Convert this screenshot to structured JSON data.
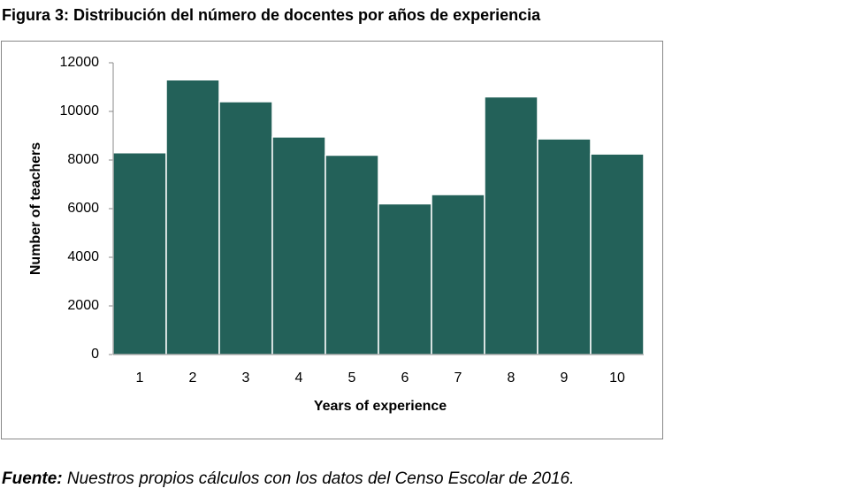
{
  "chart_data": {
    "type": "bar",
    "title": "Figura 3: Distribución del número de docentes por años de experiencia",
    "x_label": "Years of experience",
    "y_label": "Number of teachers",
    "categories": [
      "1",
      "2",
      "3",
      "4",
      "5",
      "6",
      "7",
      "8",
      "9",
      "10"
    ],
    "values": [
      8300,
      11300,
      10400,
      8950,
      8200,
      6200,
      6580,
      10600,
      8870,
      8250
    ],
    "color": "#236159",
    "ylim": [
      0,
      12000
    ],
    "yticks": [
      0,
      2000,
      4000,
      6000,
      8000,
      10000,
      12000
    ],
    "grid": false,
    "source_label": "Fuente:",
    "source_text": "Nuestros propios cálculos con los datos del Censo Escolar de 2016."
  }
}
